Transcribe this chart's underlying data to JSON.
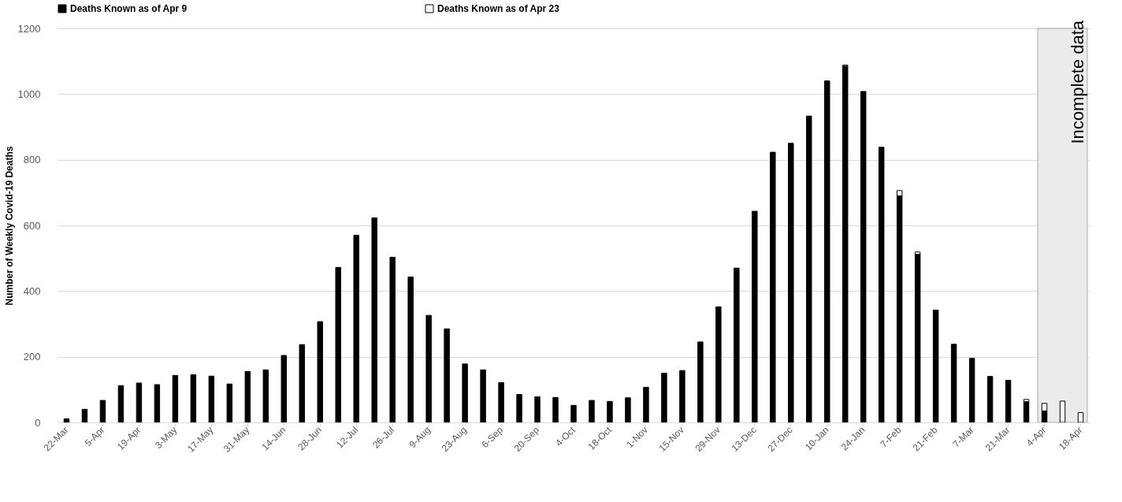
{
  "chart_data": {
    "type": "bar",
    "stacked": true,
    "ylabel": "Number of Weekly Covid-19 Deaths",
    "categories": [
      "22-Mar",
      null,
      "5-Apr",
      null,
      "19-Apr",
      null,
      "3-May",
      null,
      "17-May",
      null,
      "31-May",
      null,
      "14-Jun",
      null,
      "28-Jun",
      null,
      "12-Jul",
      null,
      "26-Jul",
      null,
      "9-Aug",
      null,
      "23-Aug",
      null,
      "6-Sep",
      null,
      "20-Sep",
      null,
      "4-Oct",
      null,
      "18-Oct",
      null,
      "1-Nov",
      null,
      "15-Nov",
      null,
      "29-Nov",
      null,
      "13-Dec",
      null,
      "27-Dec",
      null,
      "10-Jan",
      null,
      "24-Jan",
      null,
      "7-Feb",
      null,
      "21-Feb",
      null,
      "7-Mar",
      null,
      "21-Mar",
      null,
      "4-Apr",
      null,
      "18-Apr"
    ],
    "series": [
      {
        "name": "Deaths Known as of Apr 9",
        "color": "#000000",
        "values": [
          11,
          40,
          67,
          112,
          120,
          115,
          143,
          145,
          141,
          117,
          155,
          160,
          204,
          237,
          307,
          472,
          570,
          623,
          503,
          443,
          326,
          285,
          178,
          160,
          121,
          85,
          78,
          76,
          52,
          67,
          64,
          75,
          107,
          150,
          158,
          245,
          352,
          470,
          643,
          823,
          850,
          933,
          1040,
          1085,
          1008,
          838,
          690,
          512,
          342,
          238,
          195,
          140,
          128,
          63,
          35,
          null,
          null
        ]
      },
      {
        "name": "Deaths Known as of Apr 23",
        "color": "#ffffff",
        "values": [
          null,
          null,
          null,
          null,
          null,
          null,
          null,
          null,
          null,
          null,
          null,
          null,
          null,
          null,
          null,
          null,
          null,
          null,
          null,
          null,
          null,
          null,
          null,
          null,
          null,
          null,
          null,
          null,
          null,
          null,
          null,
          null,
          null,
          null,
          null,
          null,
          null,
          null,
          null,
          null,
          null,
          null,
          null,
          3,
          null,
          null,
          16,
          7,
          null,
          null,
          null,
          null,
          null,
          7,
          23,
          65,
          30
        ]
      }
    ],
    "ylim": [
      0,
      1200
    ],
    "yticks": [
      0,
      200,
      400,
      600,
      800,
      1000,
      1200
    ],
    "grid": "y",
    "legend": "top",
    "bands": [
      {
        "axis": "x",
        "from": "4-Apr",
        "to": "18-Apr",
        "label": "Incomplete data",
        "color": "#ebebeb"
      }
    ]
  }
}
